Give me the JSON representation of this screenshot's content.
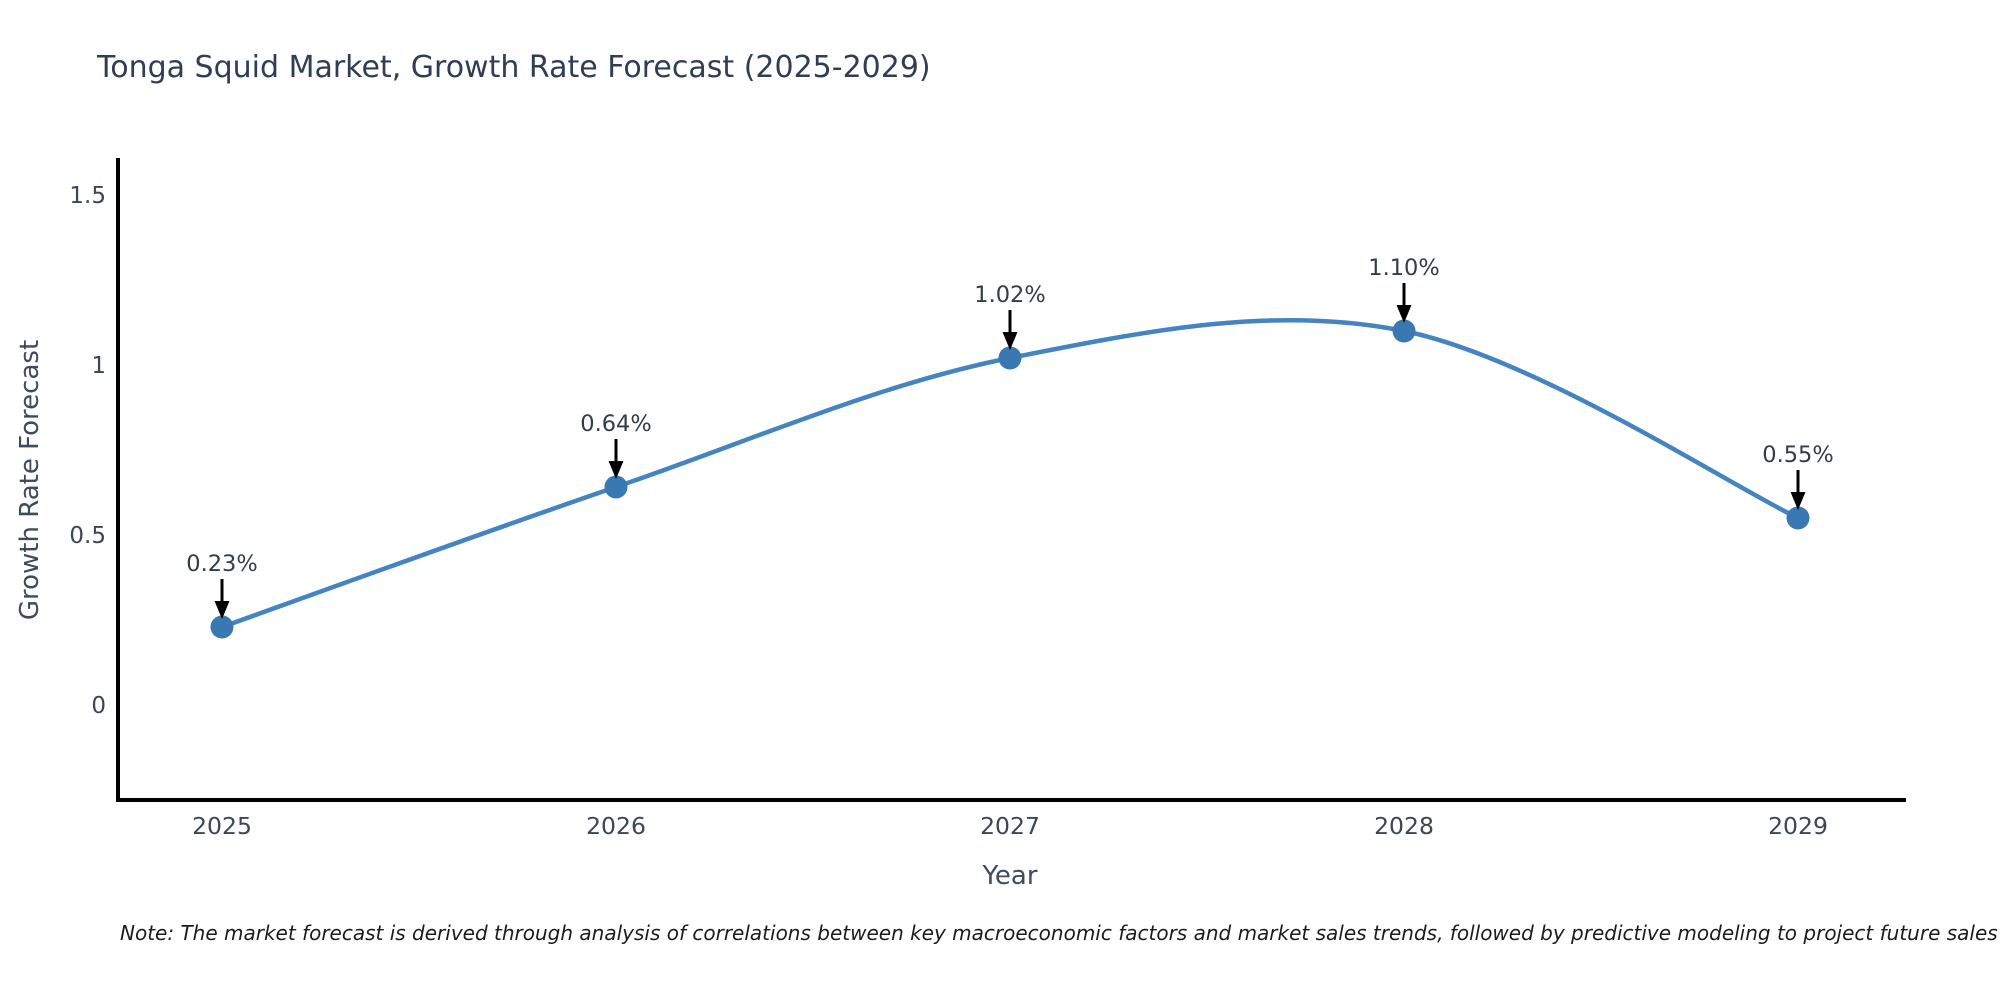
{
  "note": {
    "text": "Note: The market forecast is derived through analysis of correlations between key macroeconomic factors and market sales trends, followed by predictive modeling to project future sales"
  },
  "chart_data": {
    "type": "line",
    "title": "Tonga Squid Market, Growth Rate Forecast (2025-2029)",
    "xlabel": "Year",
    "ylabel": "Growth Rate Forecast",
    "x": [
      2025,
      2026,
      2027,
      2028,
      2029
    ],
    "series": [
      {
        "name": "Growth Rate Forecast",
        "values": [
          0.23,
          0.64,
          1.02,
          1.1,
          0.55
        ]
      }
    ],
    "point_labels": [
      "0.23%",
      "0.64%",
      "1.02%",
      "1.10%",
      "0.55%"
    ],
    "yticks": [
      0,
      0.5,
      1,
      1.5
    ],
    "ylim": [
      -0.28,
      1.6
    ],
    "grid": false,
    "legend": false,
    "smooth": true,
    "line_color": "#4583c1",
    "marker_color": "#3a78b4",
    "axis_color": "#000000",
    "tick_color": "#3b4656",
    "annotation_color": "#333c49",
    "arrow_color": "#000000"
  }
}
